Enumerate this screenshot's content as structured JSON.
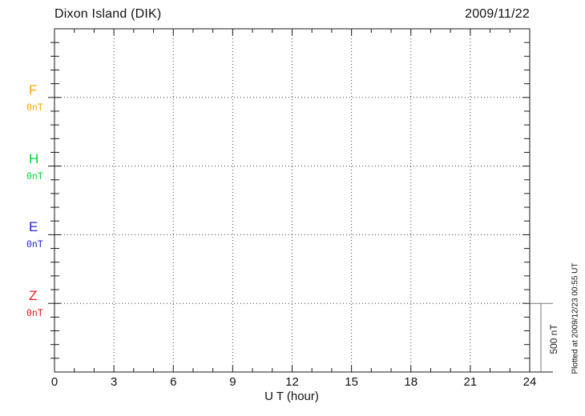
{
  "header": {
    "title": "Dixon Island (DIK)",
    "date": "2009/11/22"
  },
  "chart_data": {
    "type": "line",
    "title": "Dixon Island (DIK)",
    "date": "2009/11/22",
    "xlabel": "U T (hour)",
    "xlim": [
      0,
      24
    ],
    "x_major_ticks": [
      0,
      3,
      6,
      9,
      12,
      15,
      18,
      21,
      24
    ],
    "x_minor_step_hours": 1,
    "grid": "dotted",
    "legend_position": "left",
    "y_minor_tick_nT": 100,
    "component_spacing_nT": 500,
    "components": [
      {
        "label": "F",
        "value_label": "0nT",
        "color": "#FFA500",
        "baseline_nT": 0,
        "series": []
      },
      {
        "label": "H",
        "value_label": "0nT",
        "color": "#00D535",
        "baseline_nT": 0,
        "series": []
      },
      {
        "label": "E",
        "value_label": "0nT",
        "color": "#2626CC",
        "baseline_nT": 0,
        "series": []
      },
      {
        "label": "Z",
        "value_label": "0nT",
        "color": "#E61A1A",
        "baseline_nT": 0,
        "series": []
      }
    ],
    "scale_bar": {
      "label": "500 nT",
      "span_nT": 500
    },
    "footer_note": "Plotted at 2009/12/23 00:55 UT"
  }
}
